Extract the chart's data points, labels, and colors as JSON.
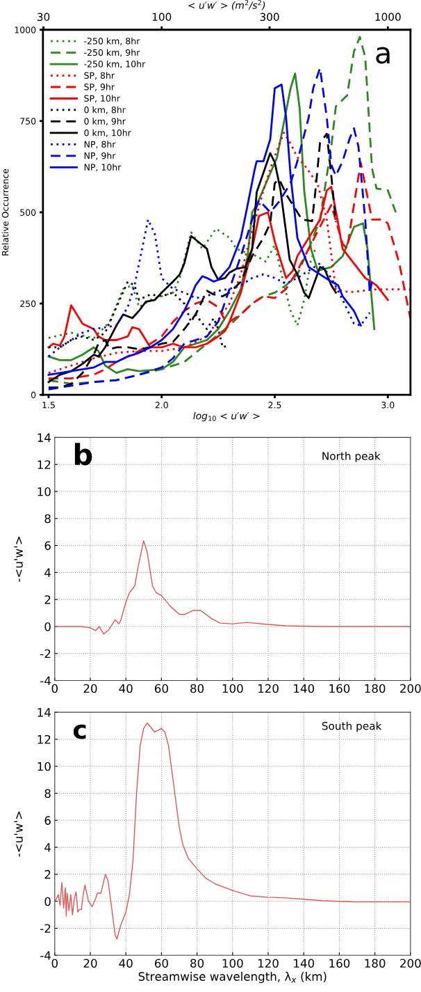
{
  "chart_data": [
    {
      "type": "line",
      "xlabel": "log$_{10}$ < u′w′ >",
      "ylabel": "Relative Occurrence",
      "x2label": "< u′w′ > (m$^{2}$/s$^{2}$)",
      "xlim": [
        1.475,
        3.1
      ],
      "ylim": [
        0,
        1000
      ],
      "xticks": [
        {
          "value": 1.5,
          "label": "1.5"
        },
        {
          "value": 2.0,
          "label": "2.0"
        },
        {
          "value": 2.5,
          "label": "2.5"
        },
        {
          "value": 3.0,
          "label": "3.0"
        }
      ],
      "yticks": [
        0,
        250,
        500,
        750,
        1000
      ],
      "x2lim": [
        29.85,
        1259
      ],
      "x2ticks": [
        30,
        100,
        300,
        1000
      ],
      "log": "x2",
      "legend": "top left",
      "grid": false,
      "annotations": [
        "a"
      ],
      "series": [
        {
          "name": "-250 km, 8hr",
          "color": "#2a8a1e",
          "line_style": "dotted",
          "x": [
            1.5,
            1.6,
            1.7,
            1.77,
            1.83,
            1.87,
            1.9,
            1.95,
            2.05,
            2.08,
            2.13,
            2.18,
            2.24,
            2.3,
            2.33,
            2.37,
            2.42,
            2.46,
            2.5,
            2.53,
            2.57,
            2.6,
            2.63,
            2.66,
            2.68
          ],
          "values": [
            156,
            170,
            155,
            200,
            290,
            300,
            240,
            260,
            280,
            320,
            445,
            400,
            455,
            430,
            400,
            390,
            380,
            365,
            410,
            330,
            230,
            190,
            260,
            370,
            400
          ]
        },
        {
          "name": "-250 km, 9hr",
          "color": "#2a8a1e",
          "line_style": "dashed",
          "x": [
            1.5,
            1.6,
            1.7,
            1.8,
            1.9,
            2.0,
            2.1,
            2.2,
            2.3,
            2.4,
            2.45,
            2.5,
            2.55,
            2.6,
            2.65,
            2.7,
            2.75,
            2.77,
            2.82,
            2.85,
            2.876,
            2.9,
            2.93,
            2.95,
            3.0,
            3.035
          ],
          "values": [
            40,
            30,
            35,
            40,
            55,
            70,
            90,
            140,
            190,
            250,
            270,
            280,
            300,
            330,
            400,
            480,
            680,
            790,
            820,
            940,
            980,
            925,
            620,
            565,
            560,
            500
          ]
        },
        {
          "name": "-250 km, 10hr",
          "color": "#2a8a1e",
          "line_style": "solid",
          "x": [
            1.5,
            1.55,
            1.6,
            1.65,
            1.7,
            1.72,
            1.75,
            1.8,
            1.85,
            1.9,
            2.0,
            2.05,
            2.1,
            2.15,
            2.2,
            2.25,
            2.3,
            2.35,
            2.38,
            2.4,
            2.42,
            2.48,
            2.51,
            2.57,
            2.59,
            2.61,
            2.63,
            2.66,
            2.69,
            2.75,
            2.8,
            2.85,
            2.89,
            2.91,
            2.94
          ],
          "values": [
            105,
            95,
            95,
            110,
            130,
            120,
            80,
            60,
            70,
            65,
            70,
            90,
            130,
            140,
            150,
            180,
            230,
            290,
            380,
            500,
            520,
            607,
            650,
            840,
            880,
            785,
            560,
            400,
            340,
            350,
            380,
            460,
            470,
            400,
            180
          ]
        },
        {
          "name": "SP, 8hr",
          "color": "#ff0000",
          "line_style": "dotted",
          "x": [
            1.5,
            1.6,
            1.7,
            1.8,
            1.9,
            2.0,
            2.1,
            2.2,
            2.3,
            2.35,
            2.4,
            2.45,
            2.49,
            2.54,
            2.57,
            2.6,
            2.64,
            2.69,
            2.73,
            2.77,
            2.83,
            2.95,
            3.1
          ],
          "values": [
            60,
            80,
            100,
            115,
            120,
            120,
            130,
            160,
            250,
            330,
            450,
            560,
            637,
            718,
            688,
            651,
            622,
            577,
            480,
            289,
            281,
            289,
            289
          ]
        },
        {
          "name": "SP, 9hr",
          "color": "#ff0000",
          "line_style": "dashed",
          "x": [
            1.5,
            1.6,
            1.7,
            1.75,
            1.8,
            1.9,
            2.0,
            2.05,
            2.1,
            2.15,
            2.2,
            2.25,
            2.28,
            2.3,
            2.35,
            2.4,
            2.45,
            2.5,
            2.55,
            2.6,
            2.65,
            2.7,
            2.75,
            2.8,
            2.82,
            2.85,
            2.88,
            2.93,
            2.98,
            3.0,
            3.05,
            3.1
          ],
          "values": [
            45,
            45,
            55,
            70,
            90,
            120,
            160,
            200,
            230,
            250,
            260,
            240,
            204,
            200,
            220,
            250,
            270,
            265,
            290,
            340,
            400,
            460,
            520,
            414,
            400,
            520,
            636,
            480,
            480,
            469,
            362,
            208
          ]
        },
        {
          "name": "SP, 10hr",
          "color": "#ff0000",
          "line_style": "solid",
          "x": [
            1.5,
            1.52,
            1.55,
            1.57,
            1.6,
            1.65,
            1.7,
            1.72,
            1.75,
            1.8,
            1.85,
            1.87,
            1.9,
            1.95,
            2.0,
            2.05,
            2.1,
            2.15,
            2.2,
            2.25,
            2.28,
            2.3,
            2.35,
            2.4,
            2.43,
            2.47,
            2.5,
            2.55,
            2.58,
            2.6,
            2.65,
            2.7,
            2.73,
            2.75,
            2.78,
            2.8,
            2.85,
            2.9,
            2.95,
            3.0
          ],
          "values": [
            130,
            140,
            135,
            160,
            245,
            195,
            180,
            160,
            150,
            150,
            160,
            185,
            180,
            130,
            130,
            140,
            130,
            130,
            140,
            160,
            175,
            200,
            280,
            400,
            490,
            500,
            420,
            320,
            340,
            380,
            430,
            480,
            560,
            570,
            470,
            400,
            360,
            320,
            300,
            260
          ]
        },
        {
          "name": "0 km, 8hr",
          "color": "#000000",
          "line_style": "dotted",
          "x": [
            1.5,
            1.55,
            1.6,
            1.65,
            1.7,
            1.75,
            1.8,
            1.85,
            1.88,
            1.9,
            1.95,
            2.0,
            2.05,
            2.1,
            2.13,
            2.15,
            2.2,
            2.23,
            2.25,
            2.27,
            2.29
          ],
          "values": [
            130,
            130,
            150,
            160,
            150,
            170,
            240,
            310,
            300,
            260,
            275,
            270,
            280,
            250,
            200,
            220,
            180,
            210,
            180,
            130,
            135
          ]
        },
        {
          "name": "0 km, 9hr",
          "color": "#000000",
          "line_style": "dashed",
          "x": [
            1.5,
            1.55,
            1.6,
            1.65,
            1.7,
            1.72,
            1.75,
            1.77,
            1.8,
            1.85,
            1.9,
            1.95,
            2.0,
            2.05,
            2.1,
            2.15,
            2.2,
            2.23,
            2.27,
            2.3,
            2.35,
            2.4,
            2.45,
            2.48,
            2.5,
            2.52,
            2.55,
            2.58,
            2.62,
            2.665,
            2.68,
            2.7,
            2.73,
            2.75,
            2.77
          ],
          "values": [
            20,
            20,
            30,
            60,
            110,
            140,
            150,
            125,
            130,
            130,
            125,
            130,
            140,
            145,
            180,
            220,
            285,
            275,
            270,
            280,
            310,
            380,
            430,
            470,
            580,
            590,
            550,
            520,
            480,
            476,
            560,
            690,
            715,
            600,
            473
          ]
        },
        {
          "name": "0 km, 10hr",
          "color": "#000000",
          "line_style": "solid",
          "x": [
            1.5,
            1.55,
            1.6,
            1.65,
            1.7,
            1.72,
            1.75,
            1.8,
            1.83,
            1.87,
            1.9,
            1.93,
            1.97,
            2.0,
            2.05,
            2.08,
            2.1,
            2.13,
            2.17,
            2.2,
            2.22,
            2.25,
            2.28,
            2.3,
            2.33,
            2.37,
            2.4,
            2.42,
            2.48,
            2.5,
            2.525,
            2.566,
            2.6,
            2.63,
            2.65,
            2.7,
            2.72,
            2.75,
            2.77
          ],
          "values": [
            35,
            55,
            65,
            85,
            110,
            105,
            130,
            190,
            220,
            210,
            230,
            255,
            260,
            280,
            310,
            330,
            360,
            435,
            415,
            400,
            350,
            315,
            320,
            335,
            345,
            350,
            400,
            555,
            662,
            637,
            562,
            370,
            330,
            280,
            265,
            350,
            345,
            300,
            280
          ]
        },
        {
          "name": "NP, 8hr",
          "color": "#0000ff",
          "line_style": "dotted",
          "x": [
            1.5,
            1.55,
            1.6,
            1.65,
            1.7,
            1.75,
            1.8,
            1.85,
            1.88,
            1.92,
            1.94,
            1.97,
            2.0,
            2.05,
            2.1,
            2.15,
            2.2,
            2.25,
            2.3,
            2.35,
            2.4,
            2.45,
            2.5,
            2.55,
            2.6,
            2.65,
            2.7,
            2.75,
            2.8,
            2.85,
            2.88,
            2.92
          ],
          "values": [
            105,
            130,
            150,
            170,
            180,
            185,
            190,
            240,
            300,
            420,
            480,
            440,
            320,
            290,
            280,
            265,
            270,
            285,
            290,
            300,
            320,
            330,
            320,
            305,
            320,
            340,
            360,
            320,
            260,
            195,
            190,
            225
          ]
        },
        {
          "name": "NP, 9hr",
          "color": "#0000ff",
          "line_style": "dashed",
          "x": [
            1.5,
            1.6,
            1.7,
            1.8,
            1.9,
            2.0,
            2.05,
            2.1,
            2.15,
            2.2,
            2.25,
            2.3,
            2.35,
            2.4,
            2.43,
            2.45,
            2.48,
            2.52,
            2.57,
            2.6,
            2.65,
            2.67,
            2.7,
            2.73,
            2.75,
            2.77,
            2.8,
            2.83,
            2.85,
            2.87,
            2.9,
            2.92,
            2.93
          ],
          "values": [
            15,
            25,
            35,
            40,
            55,
            75,
            100,
            140,
            150,
            160,
            200,
            290,
            380,
            480,
            533,
            520,
            500,
            530,
            580,
            640,
            760,
            840,
            895,
            760,
            630,
            600,
            640,
            700,
            730,
            680,
            480,
            280,
            310
          ]
        },
        {
          "name": "NP, 10hr",
          "color": "#0000ff",
          "line_style": "solid",
          "x": [
            1.5,
            1.6,
            1.7,
            1.75,
            1.8,
            1.85,
            1.9,
            1.95,
            2.0,
            2.05,
            2.1,
            2.13,
            2.15,
            2.18,
            2.2,
            2.23,
            2.25,
            2.3,
            2.35,
            2.38,
            2.41,
            2.42,
            2.45,
            2.48,
            2.5,
            2.53,
            2.55,
            2.57,
            2.6,
            2.65,
            2.7,
            2.75,
            2.78,
            2.8,
            2.85,
            2.88
          ],
          "values": [
            55,
            65,
            75,
            90,
            90,
            105,
            115,
            130,
            150,
            180,
            230,
            270,
            300,
            325,
            320,
            310,
            315,
            350,
            430,
            520,
            614,
            640,
            640,
            700,
            840,
            850,
            760,
            600,
            430,
            350,
            330,
            310,
            300,
            270,
            230,
            190
          ]
        }
      ]
    },
    {
      "type": "line",
      "ylabel": "-<u'w'>",
      "xlim": [
        0,
        200
      ],
      "ylim": [
        -4,
        14
      ],
      "xticks": [
        0,
        20,
        40,
        60,
        80,
        100,
        120,
        140,
        160,
        180,
        200
      ],
      "yticks": [
        -4,
        -2,
        0,
        2,
        4,
        6,
        8,
        10,
        12,
        14
      ],
      "grid": true,
      "legend": false,
      "annotations": [
        "b",
        "North peak"
      ],
      "series": [
        {
          "color": "#e85555",
          "line_style": "solid",
          "x": [
            0,
            15,
            20,
            23,
            25,
            27.5,
            30,
            34,
            36,
            37,
            40,
            42,
            45,
            47,
            50,
            52,
            55,
            57,
            60,
            65,
            70,
            73,
            78,
            82,
            88,
            93,
            100,
            108,
            120,
            130,
            150,
            200
          ],
          "values": [
            0,
            0,
            -0.1,
            -0.3,
            0,
            -0.55,
            -0.3,
            0.5,
            0.2,
            0.4,
            1.8,
            2.5,
            3,
            4.5,
            6.35,
            5.5,
            3,
            2.5,
            2.3,
            1.5,
            0.9,
            0.9,
            1.2,
            1.2,
            0.6,
            0.25,
            0.2,
            0.3,
            0.15,
            0.05,
            0,
            0
          ]
        }
      ]
    },
    {
      "type": "line",
      "xlabel": "Streamwise wavelength, λ$_{x}$ (km)",
      "ylabel": "-<u'w'>",
      "xlim": [
        0,
        200
      ],
      "ylim": [
        -4,
        14
      ],
      "xticks": [
        0,
        20,
        40,
        60,
        80,
        100,
        120,
        140,
        160,
        180,
        200
      ],
      "yticks": [
        -4,
        -2,
        0,
        2,
        4,
        6,
        8,
        10,
        12,
        14
      ],
      "grid": true,
      "legend": false,
      "annotations": [
        "c",
        "South peak"
      ],
      "series": [
        {
          "color": "#e85555",
          "line_style": "solid",
          "x": [
            0,
            1,
            2,
            3,
            4,
            5,
            6,
            6.5,
            7,
            8,
            9,
            10,
            11,
            12,
            13,
            14,
            15,
            16,
            17,
            18,
            19,
            21,
            23,
            24,
            26,
            28.5,
            30,
            32,
            34,
            35,
            37,
            40,
            42,
            44,
            46,
            48,
            50,
            52,
            54,
            56,
            58,
            60,
            62,
            64,
            66,
            68,
            70,
            72,
            75,
            80,
            85,
            90,
            100,
            110,
            120,
            130,
            140,
            150,
            160,
            170,
            180,
            200
          ],
          "values": [
            0,
            0.2,
            0.5,
            -0.3,
            1.4,
            -0.5,
            1.0,
            -1.1,
            0.6,
            -0.7,
            0.5,
            -1.0,
            0.2,
            0.7,
            -0.8,
            -0.6,
            -0.6,
            0.5,
            1.2,
            0.6,
            0,
            -0.4,
            0.2,
            0.6,
            0.6,
            2.0,
            1.5,
            -0.5,
            -2.5,
            -2.8,
            -1.8,
            -0.8,
            0.5,
            3,
            8,
            11.5,
            12.8,
            13.2,
            12.9,
            12.55,
            12.65,
            12.8,
            12.5,
            11.5,
            9.5,
            7.5,
            5.5,
            4.2,
            3.2,
            2.4,
            1.7,
            1.3,
            0.8,
            0.4,
            0.3,
            0.25,
            0.15,
            0.05,
            0,
            -0.05,
            -0.05,
            -0.05
          ]
        }
      ]
    }
  ]
}
